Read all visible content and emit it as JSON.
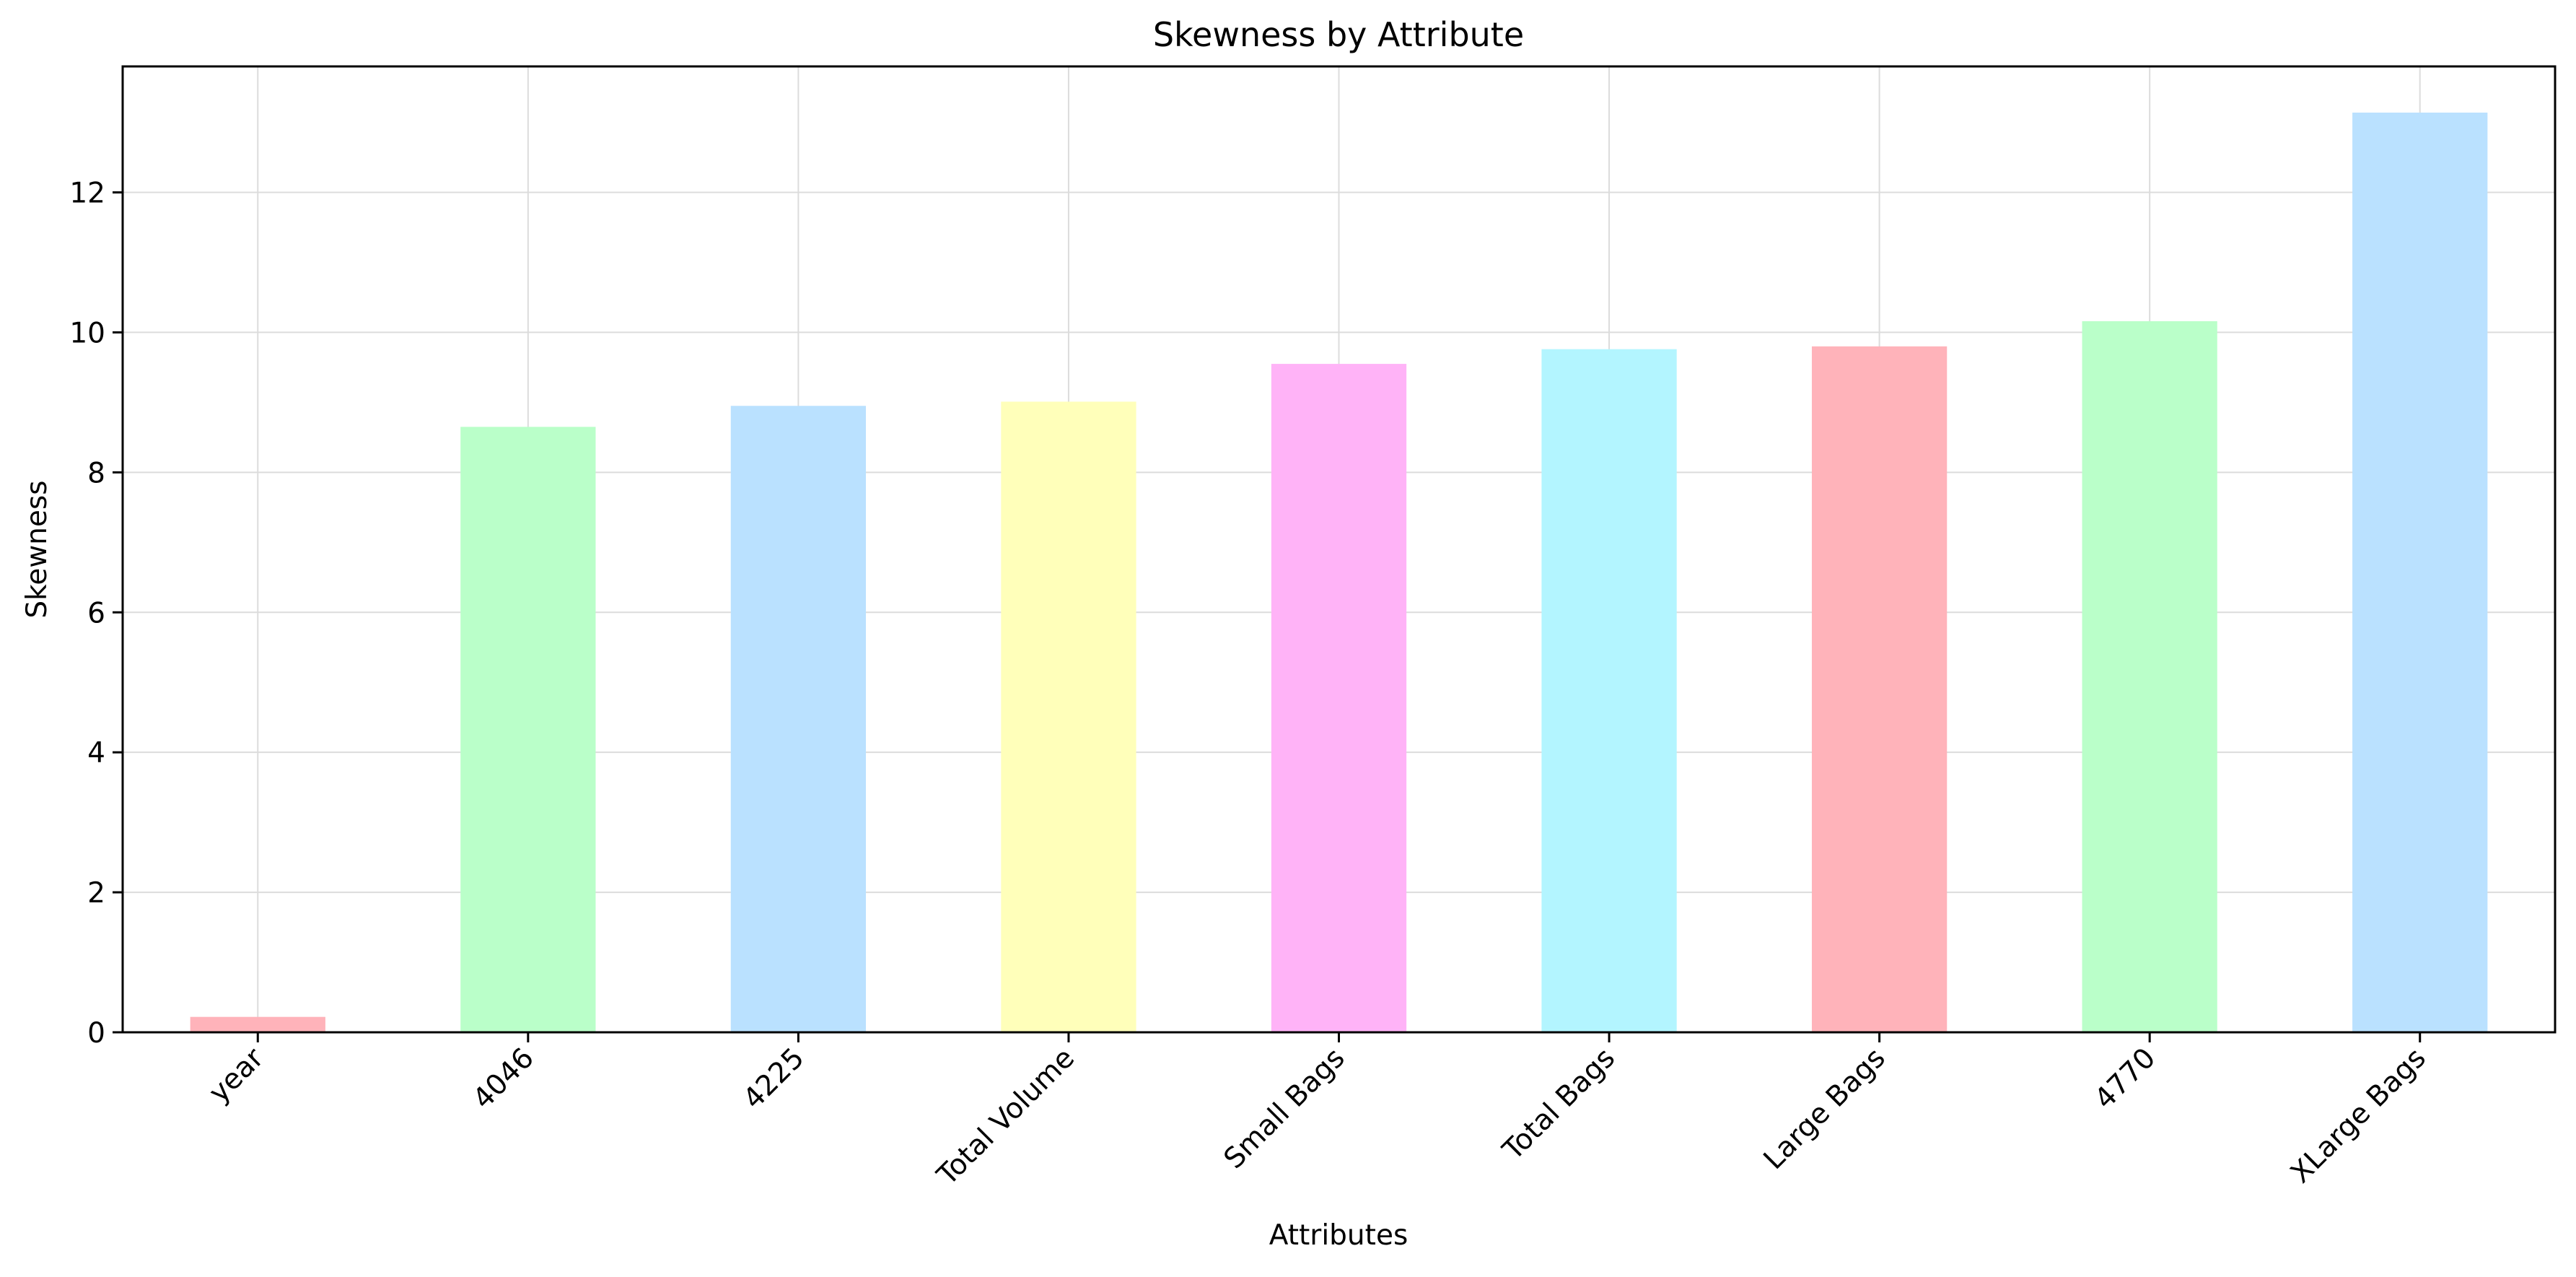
{
  "chart_data": {
    "type": "bar",
    "title": "Skewness by Attribute",
    "xlabel": "Attributes",
    "ylabel": "Skewness",
    "categories": [
      "year",
      "4046",
      "4225",
      "Total Volume",
      "Small Bags",
      "Total Bags",
      "Large Bags",
      "4770",
      "XLarge Bags"
    ],
    "values": [
      0.22,
      8.65,
      8.95,
      9.01,
      9.55,
      9.76,
      9.8,
      10.16,
      13.14
    ],
    "colors": [
      "#ffb3ba",
      "#baffc9",
      "#bae1ff",
      "#ffffba",
      "#ffb3f7",
      "#b3f5ff",
      "#ffb3ba",
      "#baffc9",
      "#bae1ff"
    ],
    "ylim": [
      0,
      13.8
    ],
    "yticks": [
      0,
      2,
      4,
      6,
      8,
      10,
      12
    ],
    "grid": true,
    "legend": false
  }
}
